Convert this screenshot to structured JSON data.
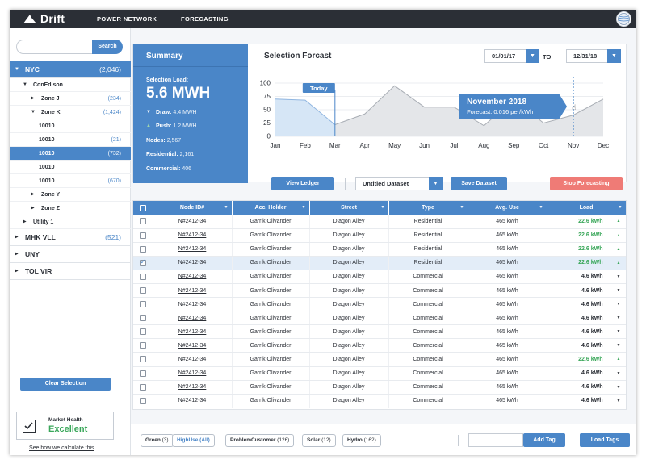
{
  "app": {
    "name": "Drift",
    "nav": [
      "POWER NETWORK",
      "FORECASTING"
    ]
  },
  "sidebar": {
    "search_placeholder": "",
    "search_label": "Search",
    "tree": [
      {
        "label": "NYC",
        "count": "(2,046)",
        "level": 0,
        "selected": true,
        "expanded": true
      },
      {
        "label": "ConEdison",
        "count": "",
        "level": 1,
        "expanded": true
      },
      {
        "label": "Zone J",
        "count": "(234)",
        "level": 2,
        "expanded": false
      },
      {
        "label": "Zone K",
        "count": "(1,424)",
        "level": 2,
        "expanded": true
      },
      {
        "label": "10010",
        "count": "",
        "level": 3
      },
      {
        "label": "10010",
        "count": "(21)",
        "level": 3
      },
      {
        "label": "10010",
        "count": "(732)",
        "level": 3,
        "selected": true
      },
      {
        "label": "10010",
        "count": "",
        "level": 3
      },
      {
        "label": "10010",
        "count": "(670)",
        "level": 3
      },
      {
        "label": "Zone Y",
        "count": "",
        "level": 2,
        "expanded": false
      },
      {
        "label": "Zone Z",
        "count": "",
        "level": 2,
        "expanded": false
      },
      {
        "label": "Utility 1",
        "count": "",
        "level": 1,
        "expanded": false
      },
      {
        "label": "MHK VLL",
        "count": "(521)",
        "level": 0,
        "expanded": false
      },
      {
        "label": "UNY",
        "count": "",
        "level": 0,
        "expanded": false
      },
      {
        "label": "TOL VIR",
        "count": "",
        "level": 0,
        "expanded": false
      }
    ],
    "clear_label": "Clear Selection",
    "health_title": "Market Health",
    "health_value": "Excellent",
    "health_link": "See how we calculate this"
  },
  "summary": {
    "title": "Summary",
    "selection_label": "Selection Load:",
    "selection_value": "5.6 MWH",
    "draw_label": "Draw:",
    "draw_value": "4.4 MWH",
    "push_label": "Push:",
    "push_value": "1.2 MWH",
    "nodes_label": "Nodes:",
    "nodes_value": "2,567",
    "residential_label": "Residential:",
    "residential_value": "2,161",
    "commercial_label": "Commercial:",
    "commercial_value": "406"
  },
  "forecast": {
    "title": "Selection Forcast",
    "date_from": "01/01/17",
    "date_to": "12/31/18",
    "to_label": "TO",
    "view_ledger": "View Ledger",
    "dataset": "Untitled Dataset",
    "save_dataset": "Save Dataset",
    "stop_forecasting": "Stop Forecasting",
    "today_label": "Today",
    "tooltip_title": "November 2018",
    "tooltip_sub": "Forecast: 0.016 per/kWh"
  },
  "chart_data": {
    "type": "area",
    "categories": [
      "Jan",
      "Feb",
      "Mar",
      "Apr",
      "May",
      "Jun",
      "Jul",
      "Aug",
      "Sep",
      "Oct",
      "Nov",
      "Dec"
    ],
    "series": [
      {
        "values": [
          70,
          68,
          22,
          42,
          95,
          55,
          55,
          20,
          70,
          25,
          40,
          70
        ]
      }
    ],
    "ylim": [
      0,
      100
    ],
    "yticks": [
      0,
      25,
      50,
      75,
      100
    ],
    "today_index": 2,
    "highlight_index": 10,
    "colors": {
      "history_fill": "#d6e6f6",
      "history_line": "#8fb5e0",
      "forecast_fill": "#e4e6e9",
      "forecast_line": "#a9aeb5",
      "marker": "#4a86c8"
    }
  },
  "table": {
    "columns": [
      "Node ID#",
      "Acc. Holder",
      "Street",
      "Type",
      "Avg. Use",
      "Load"
    ],
    "rows": [
      {
        "node": "N#2412-34",
        "holder": "Garrik Olivander",
        "street": "Diagon Alley",
        "type": "Residential",
        "use": "465 kWh",
        "load": "22.6 kWh",
        "trend": "up",
        "checked": false
      },
      {
        "node": "N#2412-34",
        "holder": "Garrik Olivander",
        "street": "Diagon Alley",
        "type": "Residential",
        "use": "465 kWh",
        "load": "22.6 kWh",
        "trend": "up",
        "checked": false
      },
      {
        "node": "N#2412-34",
        "holder": "Garrik Olivander",
        "street": "Diagon Alley",
        "type": "Residential",
        "use": "465 kWh",
        "load": "22.6 kWh",
        "trend": "up",
        "checked": false
      },
      {
        "node": "N#2412-34",
        "holder": "Garrik Olivander",
        "street": "Diagon Alley",
        "type": "Residential",
        "use": "465 kWh",
        "load": "22.6 kWh",
        "trend": "up",
        "checked": true
      },
      {
        "node": "N#2412-34",
        "holder": "Garrik Olivander",
        "street": "Diagon Alley",
        "type": "Commercial",
        "use": "465 kWh",
        "load": "4.6 kWh",
        "trend": "down",
        "checked": false
      },
      {
        "node": "N#2412-34",
        "holder": "Garrik Olivander",
        "street": "Diagon Alley",
        "type": "Commercial",
        "use": "465 kWh",
        "load": "4.6 kWh",
        "trend": "down",
        "checked": false
      },
      {
        "node": "N#2412-34",
        "holder": "Garrik Olivander",
        "street": "Diagon Alley",
        "type": "Commercial",
        "use": "465 kWh",
        "load": "4.6 kWh",
        "trend": "down",
        "checked": false
      },
      {
        "node": "N#2412-34",
        "holder": "Garrik Olivander",
        "street": "Diagon Alley",
        "type": "Commercial",
        "use": "465 kWh",
        "load": "4.6 kWh",
        "trend": "down",
        "checked": false
      },
      {
        "node": "N#2412-34",
        "holder": "Garrik Olivander",
        "street": "Diagon Alley",
        "type": "Commercial",
        "use": "465 kWh",
        "load": "4.6 kWh",
        "trend": "down",
        "checked": false
      },
      {
        "node": "N#2412-34",
        "holder": "Garrik Olivander",
        "street": "Diagon Alley",
        "type": "Commercial",
        "use": "465 kWh",
        "load": "4.6 kWh",
        "trend": "down",
        "checked": false
      },
      {
        "node": "N#2412-34",
        "holder": "Garrik Olivander",
        "street": "Diagon Alley",
        "type": "Commercial",
        "use": "465 kWh",
        "load": "22.6 kWh",
        "trend": "up",
        "checked": false
      },
      {
        "node": "N#2412-34",
        "holder": "Garrik Olivander",
        "street": "Diagon Alley",
        "type": "Commercial",
        "use": "465 kWh",
        "load": "4.6 kWh",
        "trend": "down",
        "checked": false
      },
      {
        "node": "N#2412-34",
        "holder": "Garrik Olivander",
        "street": "Diagon Alley",
        "type": "Commercial",
        "use": "465 kWh",
        "load": "4.6 kWh",
        "trend": "down",
        "checked": false
      },
      {
        "node": "N#2412-34",
        "holder": "Garrik Olivander",
        "street": "Diagon Alley",
        "type": "Commercial",
        "use": "465 kWh",
        "load": "4.6 kWh",
        "trend": "down",
        "checked": false
      }
    ]
  },
  "tags": {
    "items": [
      {
        "label": "Green",
        "count": "(3)",
        "highlight": false
      },
      {
        "label": "HighUse (All)",
        "count": "",
        "highlight": true
      },
      {
        "label": "ProblemCustomer",
        "count": "(126)",
        "highlight": false
      },
      {
        "label": "Solar",
        "count": "(12)",
        "highlight": false
      },
      {
        "label": "Hydro",
        "count": "(162)",
        "highlight": false
      }
    ],
    "input_placeholder": "",
    "add_label": "Add Tag",
    "load_label": "Load Tags"
  },
  "colors": {
    "accent": "#4a86c8",
    "dark": "#2b2f36",
    "success": "#3aa75a",
    "danger": "#ef7b76"
  }
}
